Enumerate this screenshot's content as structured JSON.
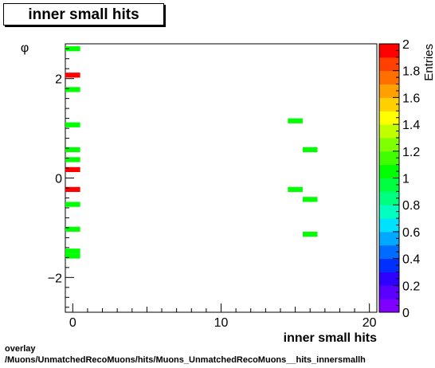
{
  "title": "inner small hits",
  "footer": {
    "line1": "overlay",
    "line2": "/Muons/UnmatchedRecoMuons/hits/Muons_UnmatchedRecoMuons__hits_innersmallh"
  },
  "chart_data": {
    "type": "heatmap",
    "title": "inner small hits",
    "xlabel": "inner small hits",
    "ylabel": "φ",
    "zlabel": "Entries",
    "xlim": [
      -0.5,
      20.5
    ],
    "ylim": [
      -2.7,
      2.7
    ],
    "zlim": [
      0,
      2
    ],
    "x_ticks": [
      0,
      10,
      20
    ],
    "y_ticks": [
      -2,
      0,
      2
    ],
    "z_ticks": [
      0,
      0.2,
      0.4,
      0.6,
      0.8,
      1,
      1.2,
      1.4,
      1.6,
      1.8,
      2
    ],
    "bin_width_x": 1,
    "bin_height_y": 0.1,
    "cells": [
      {
        "x": 0,
        "y": 2.6,
        "value": 1
      },
      {
        "x": 0,
        "y": 2.07,
        "value": 2
      },
      {
        "x": 0,
        "y": 1.78,
        "value": 1
      },
      {
        "x": 0,
        "y": 1.07,
        "value": 1
      },
      {
        "x": 0,
        "y": 0.57,
        "value": 1
      },
      {
        "x": 0,
        "y": 0.37,
        "value": 1
      },
      {
        "x": 0,
        "y": 0.17,
        "value": 2
      },
      {
        "x": 0,
        "y": -0.23,
        "value": 2
      },
      {
        "x": 0,
        "y": -0.53,
        "value": 1
      },
      {
        "x": 0,
        "y": -1.03,
        "value": 1
      },
      {
        "x": 0,
        "y": -1.47,
        "value": 1
      },
      {
        "x": 0,
        "y": -1.57,
        "value": 1
      },
      {
        "x": 15,
        "y": 1.15,
        "value": 1
      },
      {
        "x": 16,
        "y": 0.57,
        "value": 1
      },
      {
        "x": 15,
        "y": -0.23,
        "value": 1
      },
      {
        "x": 16,
        "y": -0.43,
        "value": 1
      },
      {
        "x": 16,
        "y": -1.13,
        "value": 1
      }
    ]
  }
}
